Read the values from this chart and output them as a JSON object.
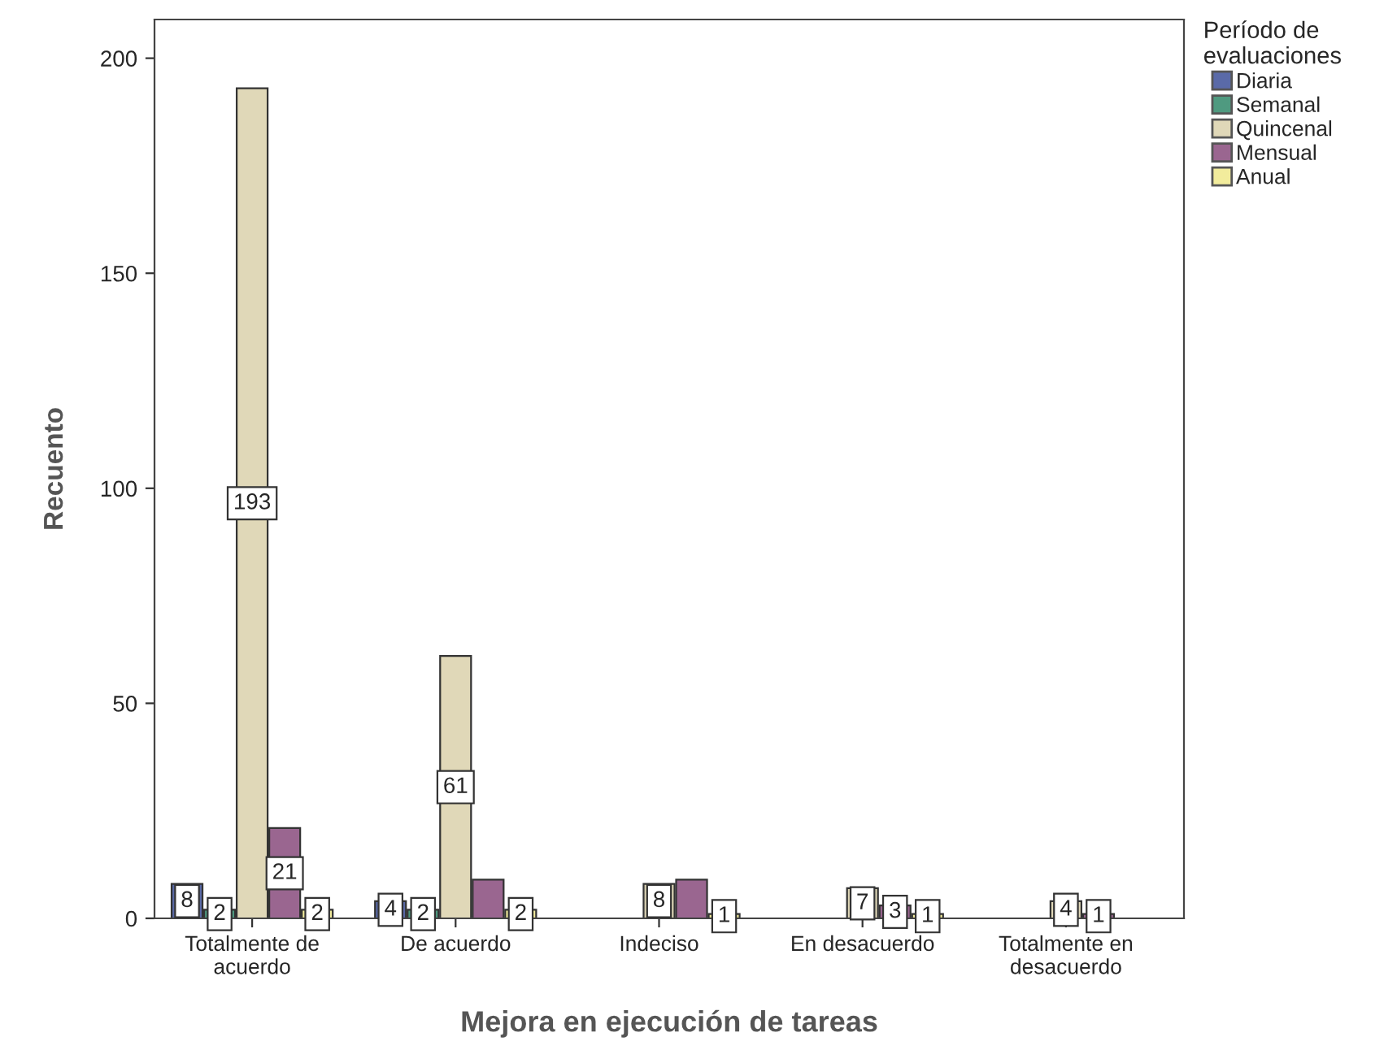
{
  "chart_data": {
    "type": "bar",
    "xlabel": "Mejora en ejecución de tareas",
    "ylabel": "Recuento",
    "legend_title": "Período de evaluaciones",
    "categories": [
      "Totalmente de\nacuerdo",
      "De acuerdo",
      "Indeciso",
      "En desacuerdo",
      "Totalmente en\ndesacuerdo"
    ],
    "series": [
      {
        "name": "Diaria",
        "color": "#5a6aa8",
        "values": [
          8,
          4,
          null,
          null,
          null
        ],
        "value_labels": [
          "8",
          "4",
          null,
          null,
          null
        ]
      },
      {
        "name": "Semanal",
        "color": "#4f9a80",
        "values": [
          2,
          2,
          null,
          null,
          null
        ],
        "value_labels": [
          "2",
          "2",
          null,
          null,
          null
        ]
      },
      {
        "name": "Quincenal",
        "color": "#e0d8b8",
        "values": [
          193,
          61,
          8,
          7,
          4
        ],
        "value_labels": [
          "193",
          "61",
          "8",
          "7",
          "4"
        ]
      },
      {
        "name": "Mensual",
        "color": "#9a6690",
        "values": [
          21,
          9,
          9,
          3,
          1
        ],
        "value_labels": [
          "21",
          null,
          null,
          "3",
          "1"
        ]
      },
      {
        "name": "Anual",
        "color": "#f2ec9c",
        "values": [
          2,
          2,
          1,
          1,
          null
        ],
        "value_labels": [
          "2",
          "2",
          "1",
          "1",
          null
        ]
      }
    ],
    "ylim": [
      0,
      209
    ],
    "yticks": [
      0,
      50,
      100,
      150,
      200
    ],
    "grid": false,
    "legend": "top right"
  }
}
